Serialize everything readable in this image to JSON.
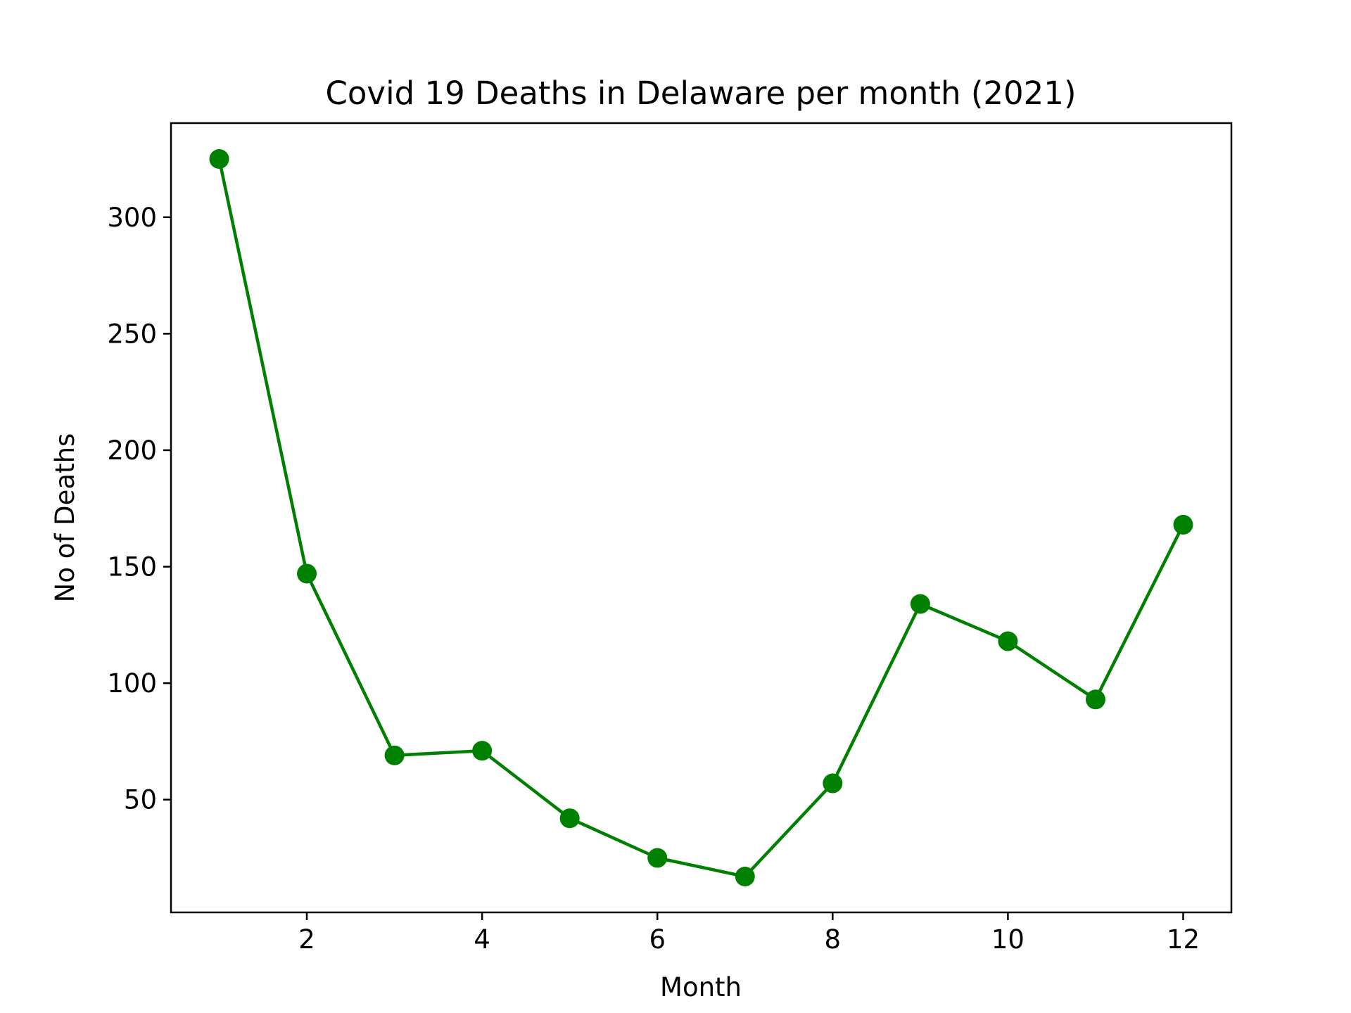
{
  "chart_data": {
    "type": "line",
    "title": "Covid 19 Deaths in Delaware per month (2021)",
    "xlabel": "Month",
    "ylabel": "No of Deaths",
    "x": [
      1,
      2,
      3,
      4,
      5,
      6,
      7,
      8,
      9,
      10,
      11,
      12
    ],
    "series": [
      {
        "values": [
          325,
          147,
          69,
          71,
          42,
          25,
          17,
          57,
          134,
          118,
          93,
          168
        ],
        "color": "#008000",
        "marker": "circle"
      }
    ],
    "xticks": [
      2,
      4,
      6,
      8,
      10,
      12
    ],
    "yticks": [
      50,
      100,
      150,
      200,
      250,
      300
    ],
    "xlim": [
      0.45,
      12.55
    ],
    "ylim": [
      1.6,
      340.4
    ],
    "grid": false,
    "legend": false
  }
}
